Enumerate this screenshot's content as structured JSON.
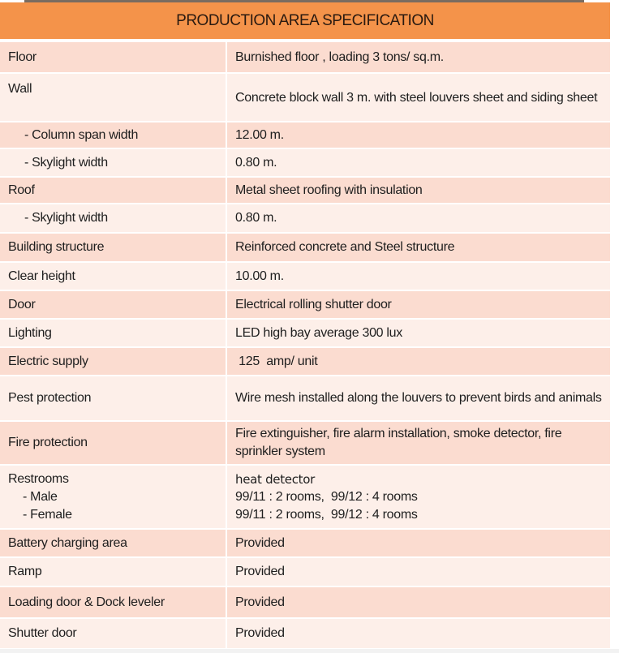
{
  "title": "PRODUCTION AREA SPECIFICATION",
  "rows": [
    {
      "label": "Floor",
      "value": "Burnished floor , loading 3 tons/ sq.m."
    },
    {
      "label": "Wall",
      "value": "Concrete block wall 3 m. with steel louvers sheet and siding sheet"
    },
    {
      "label": "- Column span width",
      "value": "12.00 m."
    },
    {
      "label": "- Skylight width",
      "value": "0.80 m."
    },
    {
      "label": "Roof",
      "value": "Metal sheet roofing with insulation"
    },
    {
      "label": "- Skylight width",
      "value": "0.80 m."
    },
    {
      "label": "Building structure",
      "value": "Reinforced concrete and Steel structure"
    },
    {
      "label": "Clear height",
      "value": "10.00 m."
    },
    {
      "label": "Door",
      "value": "Electrical rolling shutter door"
    },
    {
      "label": "Lighting",
      "value": "LED high bay average 300 lux"
    },
    {
      "label": "Electric supply",
      "value": " 125  amp/ unit"
    },
    {
      "label": "Pest protection",
      "value": "Wire mesh installed along the louvers to prevent birds and animals"
    },
    {
      "label": "Fire protection",
      "value": "Fire extinguisher, fire alarm installation, smoke detector, fire sprinkler system"
    },
    {
      "label": "Restrooms",
      "label_male": "- Male",
      "label_female": "- Female",
      "value": "heat detector",
      "value_male": "99/11 : 2 rooms,  99/12 : 4 rooms",
      "value_female": "99/11 : 2 rooms,  99/12 : 4 rooms"
    },
    {
      "label": "Battery charging area",
      "value": "Provided"
    },
    {
      "label": "Ramp",
      "value": "Provided"
    },
    {
      "label": "Loading door & Dock leveler",
      "value": "Provided"
    },
    {
      "label": "Shutter door",
      "value": "Provided"
    }
  ]
}
